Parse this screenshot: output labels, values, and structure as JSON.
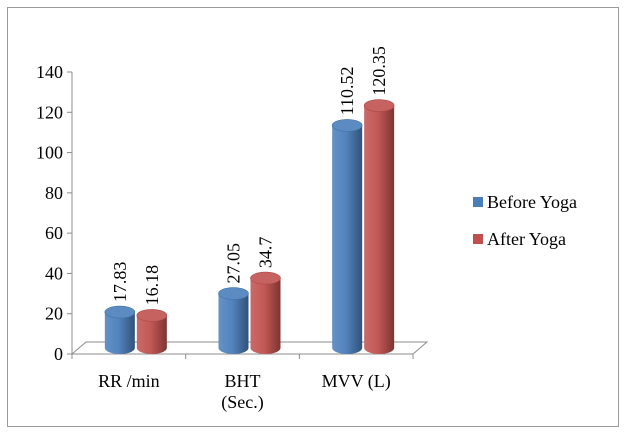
{
  "chart_data": {
    "type": "bar",
    "style": "3d-cylinder",
    "categories": [
      [
        "RR /min"
      ],
      [
        "BHT",
        "(Sec.)"
      ],
      [
        "MVV (L)"
      ]
    ],
    "series": [
      {
        "name": "Before Yoga",
        "values": [
          17.83,
          27.05,
          110.52
        ],
        "labels": [
          "17.83",
          "27.05",
          "110.52"
        ],
        "color": "#4a7ebb"
      },
      {
        "name": "After Yoga",
        "values": [
          16.18,
          34.7,
          120.35
        ],
        "labels": [
          "16.18",
          "34.7",
          "120.35"
        ],
        "color": "#c0504d"
      }
    ],
    "ylim": [
      0,
      140
    ],
    "yticks": [
      0,
      20,
      40,
      60,
      80,
      100,
      120,
      140
    ],
    "grid": false,
    "legend": "right"
  }
}
